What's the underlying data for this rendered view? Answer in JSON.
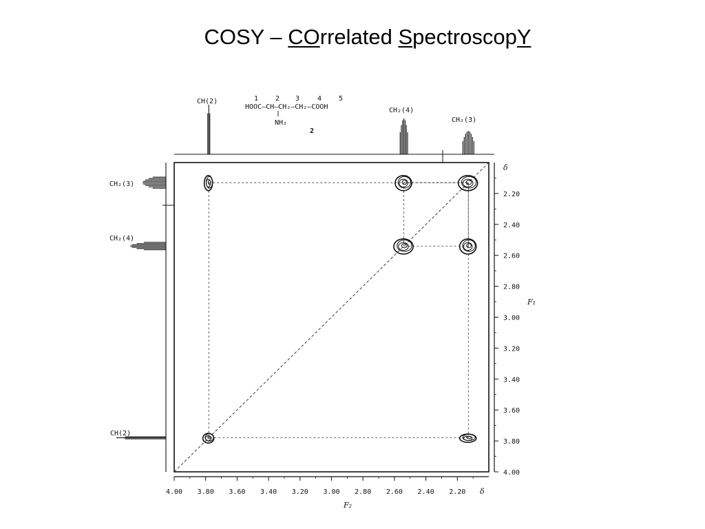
{
  "title": {
    "prefix": "COSY – ",
    "u1": "CO",
    "t1": "rrelated ",
    "u2": "S",
    "t2": "pectroscop",
    "u3": "Y"
  },
  "molecule": {
    "main_chain": "HOOC–CH–CH₂–CH₂–COOH",
    "nh2": "NH₂",
    "numbers": [
      "1",
      "2",
      "3",
      "4",
      "5"
    ],
    "compound_label": "2"
  },
  "chart_data": {
    "type": "scatter",
    "title": "",
    "xlabel": "F₂",
    "ylabel": "F₁",
    "axis_symbol": "δ",
    "x_range": [
      4.0,
      2.0
    ],
    "y_range": [
      2.0,
      4.0
    ],
    "x_ticks": [
      "4.00",
      "3.80",
      "3.60",
      "3.40",
      "3.20",
      "3.00",
      "2.80",
      "2.60",
      "2.40",
      "2.20"
    ],
    "y_ticks": [
      "2.20",
      "2.40",
      "2.60",
      "2.80",
      "3.00",
      "3.20",
      "3.40",
      "3.60",
      "3.80",
      "4.00"
    ],
    "signals": [
      {
        "label": "CH(2)",
        "shift": 3.78
      },
      {
        "label": "CH₂(4)",
        "shift": 2.54
      },
      {
        "label": "CH₂(3)",
        "shift": 2.13
      }
    ],
    "peaks": [
      {
        "x": 3.78,
        "y": 3.78,
        "kind": "diagonal"
      },
      {
        "x": 2.54,
        "y": 2.54,
        "kind": "diagonal"
      },
      {
        "x": 2.13,
        "y": 2.13,
        "kind": "diagonal"
      },
      {
        "x": 3.78,
        "y": 2.13,
        "kind": "cross"
      },
      {
        "x": 2.13,
        "y": 3.78,
        "kind": "cross"
      },
      {
        "x": 2.54,
        "y": 2.13,
        "kind": "cross"
      },
      {
        "x": 2.13,
        "y": 2.54,
        "kind": "cross"
      }
    ]
  }
}
